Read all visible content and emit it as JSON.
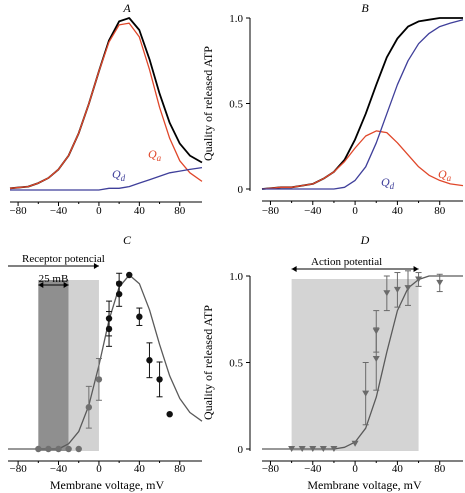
{
  "colors": {
    "black": "#000000",
    "red": "#e0472a",
    "blue": "#3f3f9a",
    "gray": "#5a5a5a",
    "band_dark": "#8f8f8f",
    "band_light": "#d2d2d2",
    "band_mid": "#d4d4d4"
  },
  "chart_data": [
    {
      "panel": "A",
      "type": "line",
      "title": "A",
      "xlabel": "",
      "ylabel": "",
      "xlim": [
        -88,
        102
      ],
      "ylim": [
        0,
        1.0
      ],
      "xticks": [
        "−80",
        "−40",
        "0",
        "40",
        "80"
      ],
      "x": [
        -88,
        -70,
        -60,
        -50,
        -40,
        -30,
        -20,
        -10,
        0,
        10,
        20,
        30,
        40,
        50,
        60,
        70,
        80,
        90,
        102
      ],
      "series": [
        {
          "name": "",
          "color": "black",
          "values": [
            0.01,
            0.02,
            0.04,
            0.07,
            0.12,
            0.2,
            0.33,
            0.5,
            0.69,
            0.87,
            0.98,
            1.0,
            0.93,
            0.76,
            0.56,
            0.39,
            0.27,
            0.2,
            0.16
          ]
        },
        {
          "name": "Qa",
          "color": "red",
          "values": [
            0.01,
            0.02,
            0.04,
            0.07,
            0.12,
            0.2,
            0.33,
            0.5,
            0.69,
            0.86,
            0.96,
            0.97,
            0.89,
            0.7,
            0.48,
            0.3,
            0.17,
            0.1,
            0.05
          ]
        },
        {
          "name": "Qd",
          "color": "blue",
          "values": [
            0.0,
            0.0,
            0.0,
            0.0,
            0.0,
            0.0,
            0.0,
            0.0,
            0.0,
            0.01,
            0.01,
            0.02,
            0.04,
            0.06,
            0.08,
            0.1,
            0.11,
            0.12,
            0.13
          ]
        }
      ]
    },
    {
      "panel": "B",
      "type": "line",
      "title": "B",
      "xlabel": "",
      "ylabel": "Quality of released ATP",
      "xlim": [
        -88,
        102
      ],
      "ylim": [
        0,
        1.0
      ],
      "xticks": [
        "−80",
        "−40",
        "0",
        "40",
        "80"
      ],
      "yticks": [
        "0",
        "0.5",
        "1.0"
      ],
      "x": [
        -88,
        -70,
        -60,
        -50,
        -40,
        -30,
        -20,
        -10,
        0,
        10,
        20,
        30,
        40,
        50,
        60,
        70,
        80,
        90,
        102
      ],
      "series": [
        {
          "name": "",
          "color": "black",
          "values": [
            0.0,
            0.01,
            0.01,
            0.02,
            0.03,
            0.06,
            0.1,
            0.17,
            0.29,
            0.44,
            0.61,
            0.77,
            0.88,
            0.95,
            0.98,
            0.99,
            1.0,
            1.0,
            1.0
          ]
        },
        {
          "name": "Qa",
          "color": "red",
          "values": [
            0.0,
            0.01,
            0.01,
            0.02,
            0.03,
            0.06,
            0.1,
            0.16,
            0.24,
            0.31,
            0.34,
            0.33,
            0.27,
            0.2,
            0.13,
            0.08,
            0.05,
            0.03,
            0.02
          ]
        },
        {
          "name": "Qd",
          "color": "blue",
          "values": [
            0.0,
            0.0,
            0.0,
            0.0,
            0.0,
            0.0,
            0.0,
            0.01,
            0.05,
            0.13,
            0.27,
            0.44,
            0.61,
            0.75,
            0.85,
            0.91,
            0.95,
            0.97,
            0.99
          ]
        }
      ]
    },
    {
      "panel": "C",
      "type": "scatter",
      "title": "C",
      "xlabel": "Membrane voltage, mV",
      "ylabel": "",
      "xlim": [
        -90,
        102
      ],
      "ylim": [
        0,
        1.0
      ],
      "xticks": [
        "−80",
        "−40",
        "0",
        "40",
        "80"
      ],
      "annotations": {
        "receptor": "Receptor potencial",
        "scale": "25 mB"
      },
      "bands": [
        {
          "x0": -60,
          "x1": -30,
          "shade": "dark"
        },
        {
          "x0": -30,
          "x1": 0,
          "shade": "light"
        }
      ],
      "fit": {
        "x": [
          -90,
          -40,
          -30,
          -20,
          -10,
          0,
          10,
          20,
          30,
          40,
          50,
          60,
          70,
          80,
          90,
          102
        ],
        "values": [
          0.0,
          0.0,
          0.03,
          0.1,
          0.25,
          0.48,
          0.74,
          0.93,
          1.0,
          0.95,
          0.8,
          0.6,
          0.42,
          0.29,
          0.21,
          0.16
        ]
      },
      "points": [
        {
          "x": -60,
          "y": 0.0,
          "err": 0,
          "tone": "gray"
        },
        {
          "x": -50,
          "y": 0.0,
          "err": 0,
          "tone": "gray"
        },
        {
          "x": -40,
          "y": 0.0,
          "err": 0,
          "tone": "gray"
        },
        {
          "x": -30,
          "y": 0.0,
          "err": 0,
          "tone": "gray"
        },
        {
          "x": -20,
          "y": 0.0,
          "err": 0,
          "tone": "gray"
        },
        {
          "x": -10,
          "y": 0.24,
          "err": 0.12,
          "tone": "gray"
        },
        {
          "x": 0,
          "y": 0.4,
          "err": 0.12,
          "tone": "gray"
        },
        {
          "x": 10,
          "y": 0.69,
          "err": 0.1,
          "tone": "black"
        },
        {
          "x": 10,
          "y": 0.75,
          "err": 0.1,
          "tone": "black"
        },
        {
          "x": 20,
          "y": 0.89,
          "err": 0.07,
          "tone": "black"
        },
        {
          "x": 20,
          "y": 0.95,
          "err": 0.06,
          "tone": "black"
        },
        {
          "x": 30,
          "y": 1.0,
          "err": 0,
          "tone": "black"
        },
        {
          "x": 40,
          "y": 0.76,
          "err": 0.05,
          "tone": "black"
        },
        {
          "x": 50,
          "y": 0.51,
          "err": 0.1,
          "tone": "black"
        },
        {
          "x": 60,
          "y": 0.4,
          "err": 0.1,
          "tone": "black"
        },
        {
          "x": 70,
          "y": 0.2,
          "err": 0,
          "tone": "black"
        }
      ]
    },
    {
      "panel": "D",
      "type": "scatter",
      "title": "D",
      "xlabel": "Membrane voltage, mV",
      "ylabel": "Quality of released ATP",
      "xlim": [
        -88,
        102
      ],
      "ylim": [
        0,
        1.0
      ],
      "xticks": [
        "−80",
        "−40",
        "0",
        "40",
        "80"
      ],
      "yticks": [
        "0",
        "0.5",
        "1.0"
      ],
      "annotations": {
        "action": "Action potential"
      },
      "bands": [
        {
          "x0": -60,
          "x1": 60,
          "shade": "mid"
        }
      ],
      "fit": {
        "x": [
          -88,
          -20,
          -10,
          0,
          10,
          20,
          30,
          40,
          50,
          60,
          70,
          80,
          102
        ],
        "values": [
          0.0,
          0.0,
          0.01,
          0.04,
          0.12,
          0.3,
          0.56,
          0.8,
          0.93,
          0.98,
          1.0,
          1.0,
          1.0
        ]
      },
      "points": [
        {
          "x": -60,
          "y": 0.0,
          "err": 0
        },
        {
          "x": -50,
          "y": 0.0,
          "err": 0
        },
        {
          "x": -40,
          "y": 0.0,
          "err": 0
        },
        {
          "x": -30,
          "y": 0.0,
          "err": 0
        },
        {
          "x": -20,
          "y": 0.0,
          "err": 0
        },
        {
          "x": 0,
          "y": 0.03,
          "err": 0
        },
        {
          "x": 10,
          "y": 0.32,
          "err": 0.18
        },
        {
          "x": 20,
          "y": 0.52,
          "err": 0.18
        },
        {
          "x": 20,
          "y": 0.68,
          "err": 0.12
        },
        {
          "x": 30,
          "y": 0.9,
          "err": 0.1
        },
        {
          "x": 40,
          "y": 0.92,
          "err": 0.1
        },
        {
          "x": 50,
          "y": 0.93,
          "err": 0.1
        },
        {
          "x": 60,
          "y": 0.98,
          "err": 0.04
        },
        {
          "x": 80,
          "y": 0.96,
          "err": 0.05
        }
      ]
    }
  ]
}
